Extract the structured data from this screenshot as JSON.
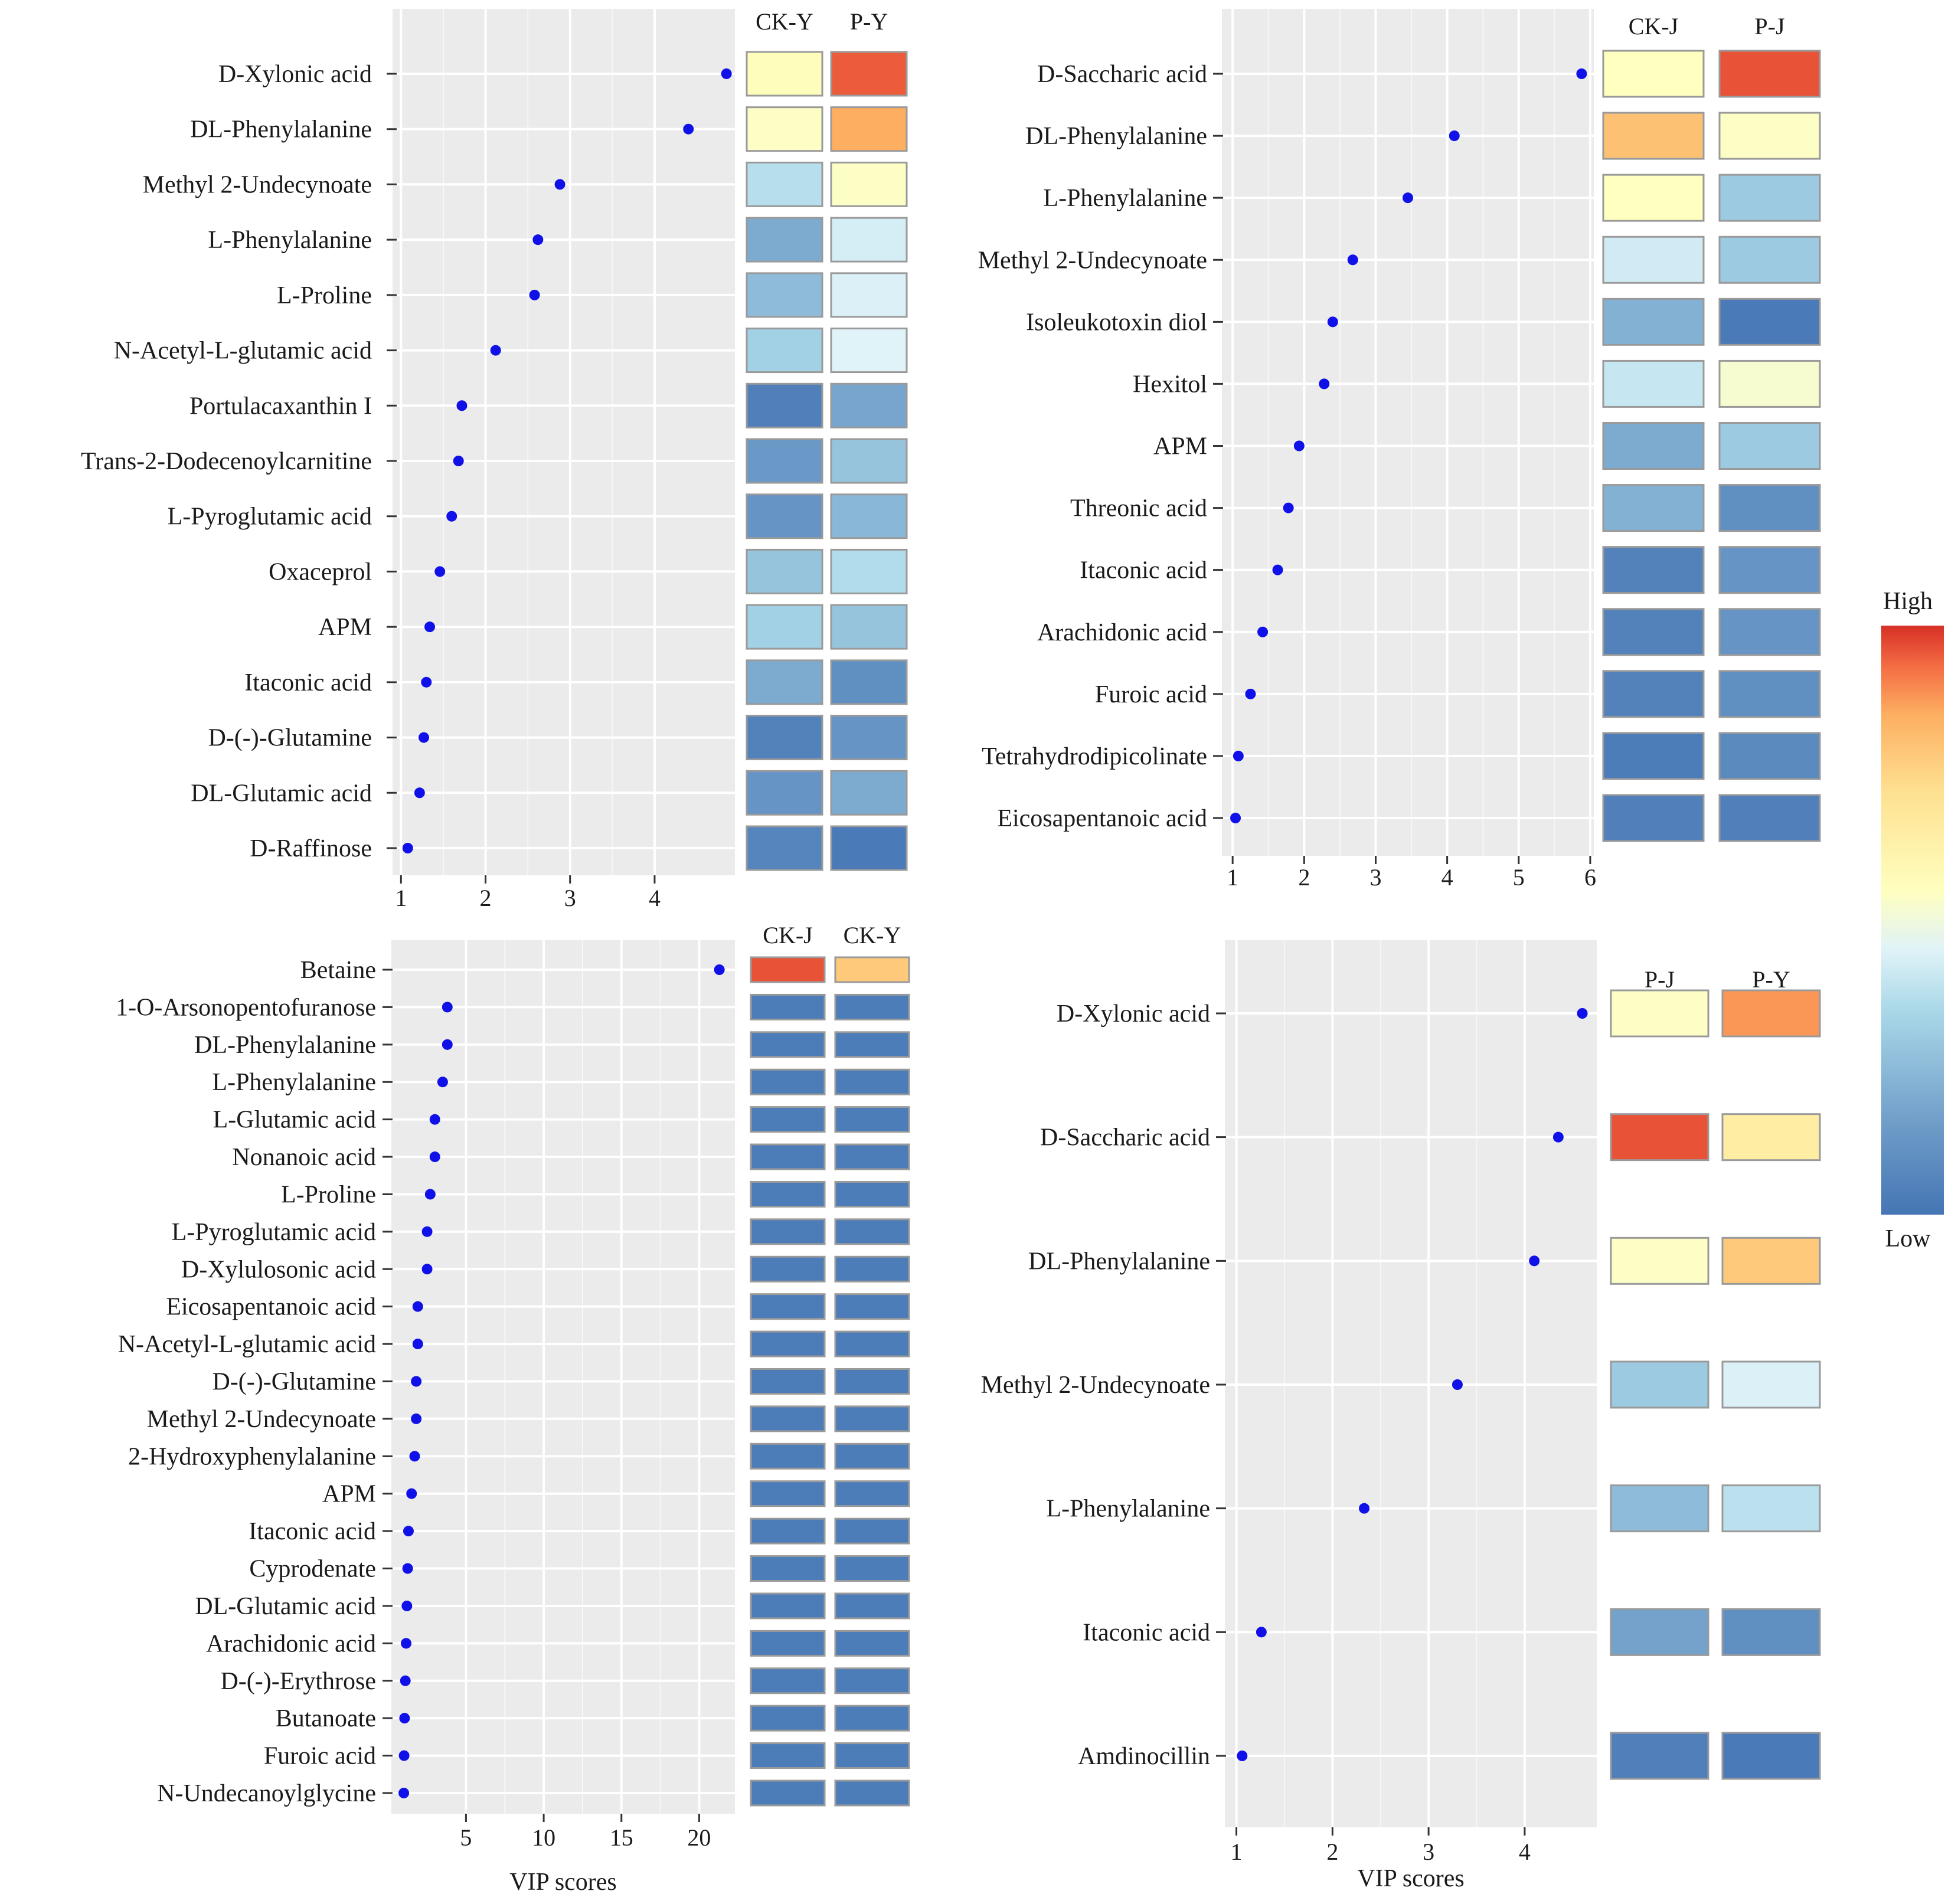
{
  "colors": {
    "panel_bg": "#EBEBEB",
    "grid": "#FFFFFF",
    "point": "#1010E8",
    "tile_border": "#9A9A9A",
    "heat_low": "#4575B4",
    "heat_mid": "#FFFFBF",
    "heat_high": "#D73027"
  },
  "legend": {
    "high_label": "High",
    "low_label": "Low"
  },
  "chart_data": [
    {
      "type": "scatter",
      "xlabel": "",
      "xlim": [
        0.9,
        4.95
      ],
      "xticks": [
        1,
        2,
        3,
        4
      ],
      "heat_headers": [
        "CK-Y",
        "P-Y"
      ],
      "items": [
        {
          "label": "D-Xylonic acid",
          "vip": 4.85,
          "heat": [
            0.56,
            0.95
          ]
        },
        {
          "label": "DL-Phenylalanine",
          "vip": 4.4,
          "heat": [
            0.54,
            0.85
          ]
        },
        {
          "label": "Methyl 2-Undecynoate",
          "vip": 2.88,
          "heat": [
            0.37,
            0.54
          ]
        },
        {
          "label": "L-Phenylalanine",
          "vip": 2.62,
          "heat": [
            0.2,
            0.43
          ]
        },
        {
          "label": "L-Proline",
          "vip": 2.58,
          "heat": [
            0.25,
            0.44
          ]
        },
        {
          "label": "N-Acetyl-L-glutamic acid",
          "vip": 2.12,
          "heat": [
            0.32,
            0.45
          ]
        },
        {
          "label": "Portulacaxanthin I",
          "vip": 1.72,
          "heat": [
            0.04,
            0.18
          ]
        },
        {
          "label": "Trans-2-Dodecenoylcarnitine",
          "vip": 1.68,
          "heat": [
            0.14,
            0.28
          ]
        },
        {
          "label": "L-Pyroglutamic acid",
          "vip": 1.6,
          "heat": [
            0.12,
            0.24
          ]
        },
        {
          "label": "Oxaceprol",
          "vip": 1.46,
          "heat": [
            0.28,
            0.36
          ]
        },
        {
          "label": "APM",
          "vip": 1.34,
          "heat": [
            0.32,
            0.28
          ]
        },
        {
          "label": "Itaconic acid",
          "vip": 1.3,
          "heat": [
            0.2,
            0.1
          ]
        },
        {
          "label": "D-(-)-Glutamine",
          "vip": 1.27,
          "heat": [
            0.05,
            0.12
          ]
        },
        {
          "label": "DL-Glutamic acid",
          "vip": 1.22,
          "heat": [
            0.12,
            0.2
          ]
        },
        {
          "label": "D-Raffinose",
          "vip": 1.08,
          "heat": [
            0.06,
            0.02
          ]
        }
      ]
    },
    {
      "type": "scatter",
      "xlabel": "",
      "xlim": [
        0.85,
        6.05
      ],
      "xticks": [
        1,
        2,
        3,
        4,
        5,
        6
      ],
      "heat_headers": [
        "CK-J",
        "P-J"
      ],
      "items": [
        {
          "label": "D-Saccharic acid",
          "vip": 5.88,
          "heat": [
            0.55,
            0.96
          ]
        },
        {
          "label": "DL-Phenylalanine",
          "vip": 4.1,
          "heat": [
            0.8,
            0.54
          ]
        },
        {
          "label": "L-Phenylalanine",
          "vip": 3.45,
          "heat": [
            0.55,
            0.3
          ]
        },
        {
          "label": "Methyl 2-Undecynoate",
          "vip": 2.68,
          "heat": [
            0.42,
            0.3
          ]
        },
        {
          "label": "Isoleukotoxin diol",
          "vip": 2.4,
          "heat": [
            0.22,
            0.02
          ]
        },
        {
          "label": "Hexitol",
          "vip": 2.28,
          "heat": [
            0.4,
            0.52
          ]
        },
        {
          "label": "APM",
          "vip": 1.93,
          "heat": [
            0.2,
            0.3
          ]
        },
        {
          "label": "Threonic acid",
          "vip": 1.78,
          "heat": [
            0.22,
            0.1
          ]
        },
        {
          "label": "Itaconic acid",
          "vip": 1.63,
          "heat": [
            0.05,
            0.12
          ]
        },
        {
          "label": "Arachidonic acid",
          "vip": 1.42,
          "heat": [
            0.05,
            0.12
          ]
        },
        {
          "label": "Furoic acid",
          "vip": 1.25,
          "heat": [
            0.05,
            0.1
          ]
        },
        {
          "label": "Tetrahydrodipicolinate",
          "vip": 1.08,
          "heat": [
            0.03,
            0.08
          ]
        },
        {
          "label": "Eicosapentanoic acid",
          "vip": 1.04,
          "heat": [
            0.04,
            0.04
          ]
        }
      ]
    },
    {
      "type": "scatter",
      "xlabel": "VIP scores",
      "xlim": [
        0.2,
        22.3
      ],
      "xticks": [
        5,
        10,
        15,
        20
      ],
      "heat_headers": [
        "CK-J",
        "CK-Y"
      ],
      "items": [
        {
          "label": "Betaine",
          "vip": 21.3,
          "heat": [
            0.96,
            0.78
          ]
        },
        {
          "label": "1-O-Arsonopentofuranose",
          "vip": 3.8,
          "heat": [
            0.03,
            0.03
          ]
        },
        {
          "label": "DL-Phenylalanine",
          "vip": 3.8,
          "heat": [
            0.03,
            0.03
          ]
        },
        {
          "label": "L-Phenylalanine",
          "vip": 3.5,
          "heat": [
            0.03,
            0.03
          ]
        },
        {
          "label": "L-Glutamic acid",
          "vip": 3.0,
          "heat": [
            0.03,
            0.03
          ]
        },
        {
          "label": "Nonanoic acid",
          "vip": 3.0,
          "heat": [
            0.03,
            0.03
          ]
        },
        {
          "label": "L-Proline",
          "vip": 2.7,
          "heat": [
            0.03,
            0.03
          ]
        },
        {
          "label": "L-Pyroglutamic acid",
          "vip": 2.5,
          "heat": [
            0.03,
            0.03
          ]
        },
        {
          "label": "D-Xylulosonic acid",
          "vip": 2.5,
          "heat": [
            0.03,
            0.03
          ]
        },
        {
          "label": "Eicosapentanoic acid",
          "vip": 1.9,
          "heat": [
            0.03,
            0.03
          ]
        },
        {
          "label": "N-Acetyl-L-glutamic acid",
          "vip": 1.9,
          "heat": [
            0.03,
            0.03
          ]
        },
        {
          "label": "D-(-)-Glutamine",
          "vip": 1.8,
          "heat": [
            0.03,
            0.03
          ]
        },
        {
          "label": "Methyl 2-Undecynoate",
          "vip": 1.8,
          "heat": [
            0.03,
            0.03
          ]
        },
        {
          "label": "2-Hydroxyphenylalanine",
          "vip": 1.7,
          "heat": [
            0.03,
            0.03
          ]
        },
        {
          "label": "APM",
          "vip": 1.5,
          "heat": [
            0.03,
            0.03
          ]
        },
        {
          "label": "Itaconic acid",
          "vip": 1.3,
          "heat": [
            0.03,
            0.03
          ]
        },
        {
          "label": "Cyprodenate",
          "vip": 1.25,
          "heat": [
            0.03,
            0.03
          ]
        },
        {
          "label": "DL-Glutamic acid",
          "vip": 1.2,
          "heat": [
            0.03,
            0.03
          ]
        },
        {
          "label": "Arachidonic acid",
          "vip": 1.15,
          "heat": [
            0.03,
            0.03
          ]
        },
        {
          "label": "D-(-)-Erythrose",
          "vip": 1.1,
          "heat": [
            0.03,
            0.03
          ]
        },
        {
          "label": "Butanoate",
          "vip": 1.05,
          "heat": [
            0.03,
            0.03
          ]
        },
        {
          "label": "Furoic acid",
          "vip": 1.02,
          "heat": [
            0.03,
            0.03
          ]
        },
        {
          "label": "N-Undecanoylglycine",
          "vip": 1.0,
          "heat": [
            0.03,
            0.03
          ]
        }
      ]
    },
    {
      "type": "scatter",
      "xlabel": "VIP scores",
      "xlim": [
        0.88,
        4.75
      ],
      "xticks": [
        1,
        2,
        3,
        4
      ],
      "heat_headers": [
        "P-J",
        "P-Y"
      ],
      "items": [
        {
          "label": "D-Xylonic acid",
          "vip": 4.6,
          "heat": [
            0.54,
            0.88
          ]
        },
        {
          "label": "D-Saccharic acid",
          "vip": 4.35,
          "heat": [
            0.96,
            0.65
          ]
        },
        {
          "label": "DL-Phenylalanine",
          "vip": 4.1,
          "heat": [
            0.54,
            0.78
          ]
        },
        {
          "label": "Methyl 2-Undecynoate",
          "vip": 3.3,
          "heat": [
            0.3,
            0.44
          ]
        },
        {
          "label": "L-Phenylalanine",
          "vip": 2.33,
          "heat": [
            0.25,
            0.38
          ]
        },
        {
          "label": "Itaconic acid",
          "vip": 1.26,
          "heat": [
            0.17,
            0.1
          ]
        },
        {
          "label": "Amdinocillin",
          "vip": 1.06,
          "heat": [
            0.04,
            0.02
          ]
        }
      ]
    }
  ]
}
